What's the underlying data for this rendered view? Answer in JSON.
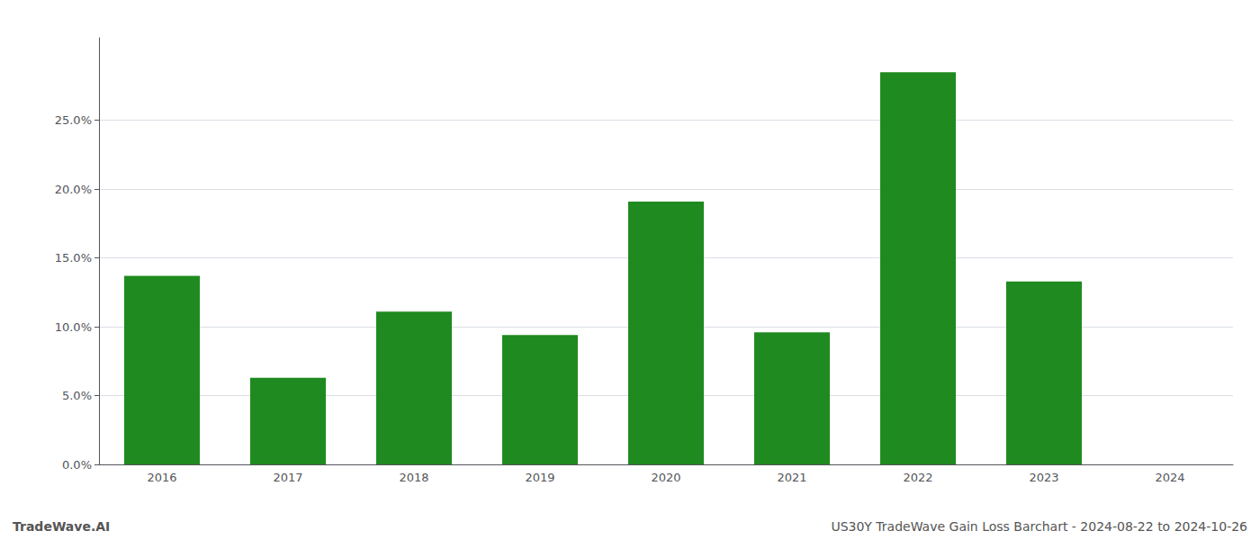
{
  "chart_data": {
    "type": "bar",
    "categories": [
      "2016",
      "2017",
      "2018",
      "2019",
      "2020",
      "2021",
      "2022",
      "2023",
      "2024"
    ],
    "values": [
      0.137,
      0.063,
      0.111,
      0.094,
      0.191,
      0.096,
      0.285,
      0.133,
      0.0
    ],
    "color": "#1f8a1f",
    "ylim": [
      0,
      0.31
    ],
    "yticks": [
      {
        "value": 0.0,
        "label": "0.0%"
      },
      {
        "value": 0.05,
        "label": "5.0%"
      },
      {
        "value": 0.1,
        "label": "10.0%"
      },
      {
        "value": 0.15,
        "label": "15.0%"
      },
      {
        "value": 0.2,
        "label": "20.0%"
      },
      {
        "value": 0.25,
        "label": "25.0%"
      }
    ],
    "grid": true,
    "annotations": [
      "TradeWave.AI",
      "US30Y TradeWave Gain Loss Barchart - 2024-08-22 to 2024-10-26"
    ]
  }
}
